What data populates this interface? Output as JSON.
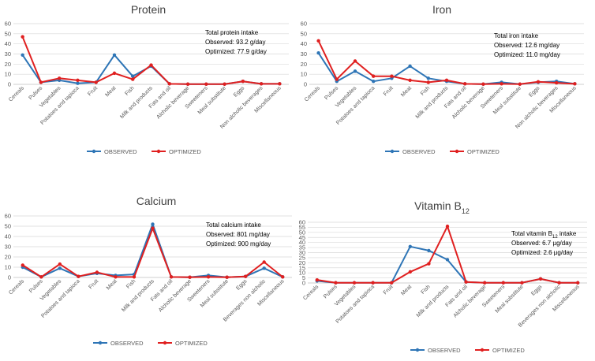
{
  "colors": {
    "observed": "#2E75B6",
    "optimized": "#E02020",
    "grid": "#D9D9D9",
    "axis": "#BFBFBF"
  },
  "chart_data": [
    {
      "type": "line",
      "title": "Protein",
      "title_sub": "",
      "title_suffix": "",
      "ylim": [
        0,
        60
      ],
      "yticks": [
        0,
        10,
        20,
        30,
        40,
        50,
        60
      ],
      "categories": [
        "Cereals",
        "Pulses",
        "Vegetables",
        "Potatoes and tapioca",
        "Fruit",
        "Meat",
        "Fish",
        "Milk and products",
        "Fats and oil",
        "Alcholic beverage",
        "Sweeteners",
        "Meal substitute",
        "Eggs",
        "Non alcholic beverages",
        "Miscellaneous"
      ],
      "series": [
        {
          "name": "OBSERVED",
          "values": [
            29,
            2,
            4,
            1,
            2,
            29,
            8,
            18,
            0.5,
            0.2,
            0.2,
            0.2,
            3,
            0.5,
            0.5
          ]
        },
        {
          "name": "OPTIMIZED",
          "values": [
            47,
            2,
            6,
            4,
            2,
            11,
            5,
            19,
            0.5,
            0.2,
            0.2,
            0.2,
            3,
            0.5,
            0.5
          ]
        }
      ],
      "annotation": [
        "Total protein intake",
        "Observed: 93.2 g/day",
        "Optimized: 77.9 g/day"
      ],
      "legend": "bottom"
    },
    {
      "type": "line",
      "title": "Iron",
      "title_sub": "",
      "title_suffix": "",
      "ylim": [
        0,
        60
      ],
      "yticks": [
        0,
        10,
        20,
        30,
        40,
        50,
        60
      ],
      "categories": [
        "Cereals",
        "Pulses",
        "Vegetables",
        "Potatoes and tapioca",
        "Fruit",
        "Meat",
        "Fish",
        "Milk and products",
        "Fats and oil",
        "Alcholic beverage",
        "Sweeteners",
        "Meal substitute",
        "Eggs",
        "Non alcholic beverages",
        "Miscellaneous"
      ],
      "series": [
        {
          "name": "OBSERVED",
          "values": [
            31,
            3,
            13,
            3,
            6,
            18,
            6,
            3,
            0.5,
            0.2,
            2,
            0.2,
            2,
            3,
            0.5
          ]
        },
        {
          "name": "OPTIMIZED",
          "values": [
            43,
            5,
            23,
            8,
            8,
            4,
            2,
            4,
            0.5,
            0.2,
            0.5,
            0.2,
            2.5,
            1.5,
            0.5
          ]
        }
      ],
      "annotation": [
        "Total iron intake",
        "Observed: 12.6 mg/day",
        "Optimized: 11.0 mg/day"
      ],
      "legend": "bottom"
    },
    {
      "type": "line",
      "title": "Calcium",
      "title_sub": "",
      "title_suffix": "",
      "ylim": [
        0,
        60
      ],
      "yticks": [
        0,
        10,
        20,
        30,
        40,
        50,
        60
      ],
      "categories": [
        "Cereals",
        "Pulses",
        "Vegetables",
        "Potatoes and tapioca",
        "Fruit",
        "Meat",
        "Fish",
        "Milk and products",
        "Fats and oil",
        "Alcholic beverage",
        "Sweeteners",
        "Meal substitute",
        "Eggs",
        "Beverages non alcholic",
        "Miscellaneous"
      ],
      "series": [
        {
          "name": "OBSERVED",
          "values": [
            10,
            0.5,
            9,
            1,
            4,
            2,
            3,
            52,
            0.5,
            0.2,
            2,
            0.2,
            1,
            9,
            0.5
          ]
        },
        {
          "name": "OPTIMIZED",
          "values": [
            12,
            0.5,
            13,
            1,
            5,
            0.5,
            0.5,
            48,
            0.5,
            0.2,
            0.5,
            0.2,
            1,
            15,
            0.5
          ]
        }
      ],
      "annotation": [
        "Total calcium intake",
        "Observed: 801 mg/day",
        "Optimized: 900 mg/day"
      ],
      "legend": "bottom"
    },
    {
      "type": "line",
      "title": "Vitamin B",
      "title_sub": "12",
      "title_suffix": "",
      "ylim": [
        0,
        60
      ],
      "yticks": [
        0,
        5,
        10,
        15,
        20,
        25,
        30,
        35,
        40,
        45,
        50,
        55,
        60
      ],
      "categories": [
        "Cereals",
        "Pulses",
        "Vegetables",
        "Potatoes and tapioca",
        "Fruit",
        "Meat",
        "Fish",
        "Milk and products",
        "Fats and oil",
        "Alcholic beverage",
        "Sweeteners",
        "Meal substitute",
        "Eggs",
        "Beverages non alcholic",
        "Miscellaneous"
      ],
      "series": [
        {
          "name": "OBSERVED",
          "values": [
            2,
            0.2,
            0.2,
            0.2,
            0.2,
            36,
            32,
            23,
            1,
            0.2,
            0.2,
            0.2,
            4,
            0.2,
            0.2
          ]
        },
        {
          "name": "OPTIMIZED",
          "values": [
            3,
            0.2,
            0.2,
            0.2,
            0.2,
            11,
            19,
            56,
            1,
            0.2,
            0.2,
            0.2,
            4,
            0.2,
            0.2
          ]
        }
      ],
      "annotation": [
        "Total vitamin B12 intake",
        "Observed: 6.7 µg/day",
        "Optimized: 2.6 µg/day"
      ],
      "annotation_rich": {
        "pre": "Total vitamin B",
        "sub": "12",
        "post": " intake"
      },
      "legend": "bottom"
    }
  ]
}
